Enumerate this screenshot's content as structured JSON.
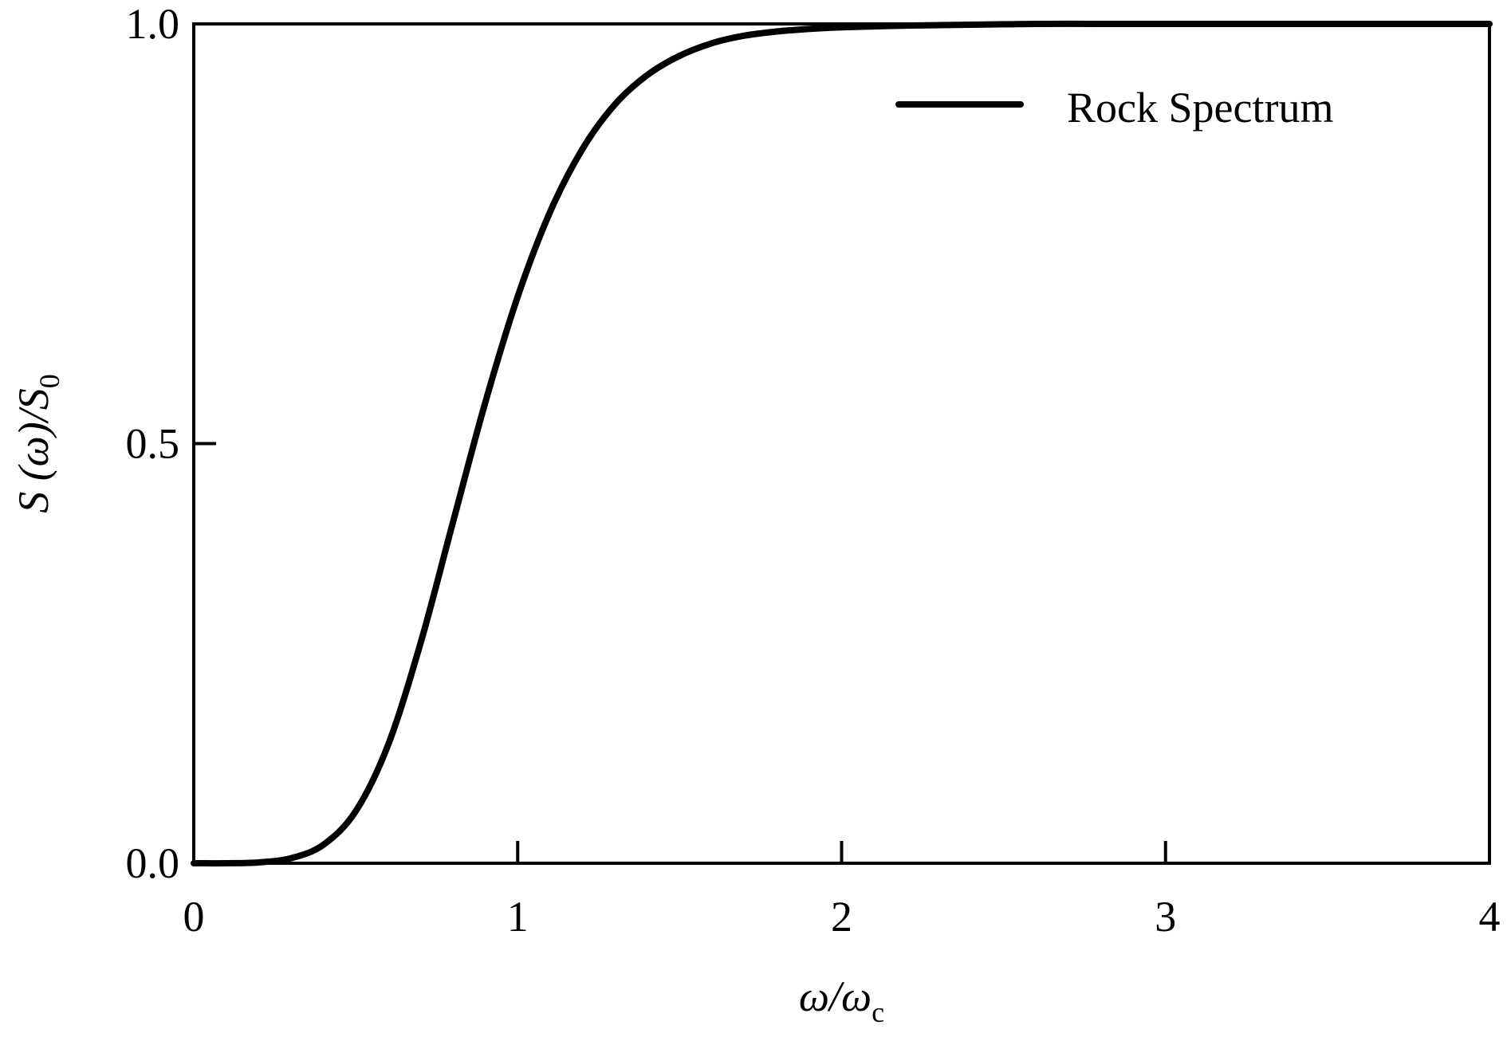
{
  "chart_data": {
    "type": "line",
    "title": "",
    "xlabel": "ω/ωc",
    "ylabel": "S (ω)/S0",
    "xlim": [
      0,
      4
    ],
    "ylim": [
      0,
      1
    ],
    "x_ticks": [
      "0",
      "1",
      "2",
      "3",
      "4"
    ],
    "y_ticks": [
      "0.0",
      "0.5",
      "1.0"
    ],
    "grid": false,
    "legend_position": "top-right",
    "series": [
      {
        "name": "Rock Spectrum",
        "color": "#000000",
        "x": [
          0,
          0.1,
          0.2,
          0.3,
          0.4,
          0.5,
          0.6,
          0.7,
          0.8,
          0.9,
          1.0,
          1.1,
          1.2,
          1.3,
          1.4,
          1.5,
          1.6,
          1.7,
          1.8,
          1.9,
          2.0,
          2.2,
          2.4,
          2.6,
          2.8,
          3.0,
          3.5,
          4.0
        ],
        "y": [
          0,
          0.0,
          0.001,
          0.006,
          0.022,
          0.062,
          0.141,
          0.262,
          0.406,
          0.549,
          0.675,
          0.776,
          0.851,
          0.904,
          0.939,
          0.962,
          0.977,
          0.986,
          0.991,
          0.994,
          0.996,
          0.998,
          0.999,
          1.0,
          1.0,
          1.0,
          1.0,
          1.0
        ]
      }
    ]
  }
}
